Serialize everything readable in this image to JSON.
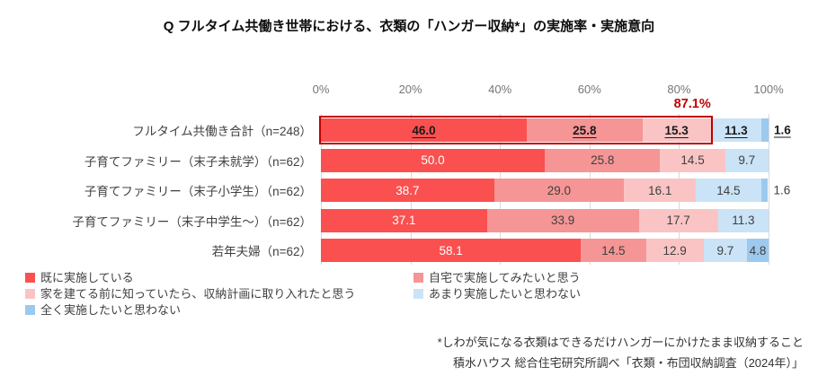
{
  "title": "Q フルタイム共働き世帯における、衣類の「ハンガー収納*」の実施率・実施意向",
  "colors": {
    "series": [
      "#fa5050",
      "#f59595",
      "#fac4c4",
      "#cae3f7",
      "#9cc9ee"
    ],
    "highlight_border": "#c00000",
    "annotation_text": "#c00000",
    "gridline": "#d9d9d9"
  },
  "chart_data": {
    "type": "bar",
    "orientation": "horizontal",
    "stacked": true,
    "unit": "%",
    "xlim": [
      0,
      100
    ],
    "x_ticks": [
      "0%",
      "20%",
      "40%",
      "60%",
      "80%",
      "100%"
    ],
    "grid": true,
    "categories": [
      "フルタイム共働き合計（n=248）",
      "子育てファミリー（末子未就学）（n=62）",
      "子育てファミリー（末子小学生）（n=62）",
      "子育てファミリー（末子中学生～）（n=62）",
      "若年夫婦（n=62）"
    ],
    "series": [
      {
        "name": "既に実施している",
        "values": [
          46.0,
          50.0,
          38.7,
          37.1,
          58.1
        ]
      },
      {
        "name": "自宅で実施してみたいと思う",
        "values": [
          25.8,
          25.8,
          29.0,
          33.9,
          14.5
        ]
      },
      {
        "name": "家を建てる前に知っていたら、収納計画に取り入れたと思う",
        "values": [
          15.3,
          14.5,
          16.1,
          17.7,
          12.9
        ]
      },
      {
        "name": "あまり実施したいと思わない",
        "values": [
          11.3,
          9.7,
          14.5,
          11.3,
          9.7
        ]
      },
      {
        "name": "全く実施したいと思わない",
        "values": [
          1.6,
          0,
          1.6,
          0,
          4.8
        ]
      }
    ],
    "annotation": {
      "text": "87.1%",
      "row": 0,
      "value": 87.1
    },
    "legend_position": "bottom"
  },
  "legend": {
    "columns": [
      [
        0,
        2,
        4
      ],
      [
        1,
        3
      ]
    ]
  },
  "footnotes": [
    "*しわが気になる衣類はできるだけハンガーにかけたまま収納すること",
    "積水ハウス 総合住宅研究所調べ「衣類・布団収納調査（2024年）」"
  ]
}
